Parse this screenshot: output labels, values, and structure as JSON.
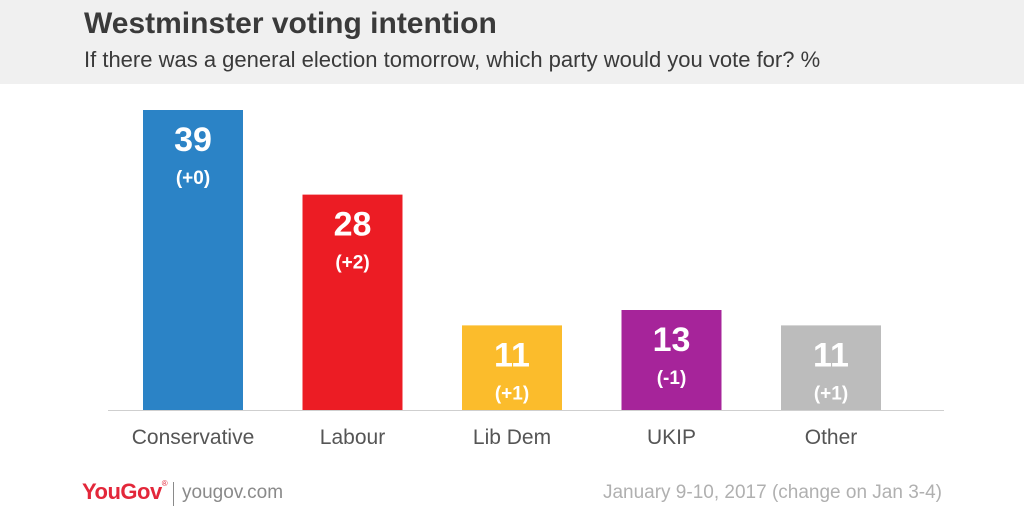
{
  "header": {
    "title": "Westminster voting intention",
    "subtitle": "If there was a general election tomorrow, which party would you vote for? %"
  },
  "chart_data": {
    "type": "bar",
    "categories": [
      "Conservative",
      "Labour",
      "Lib Dem",
      "UKIP",
      "Other"
    ],
    "values": [
      39,
      28,
      11,
      13,
      11
    ],
    "changes": [
      "(+0)",
      "(+2)",
      "(+1)",
      "(-1)",
      "(+1)"
    ],
    "colors": [
      "#2b83c6",
      "#ec1c24",
      "#fbbc2c",
      "#a6249a",
      "#bcbcbc"
    ],
    "title": "Westminster voting intention",
    "subtitle": "If there was a general election tomorrow, which party would you vote for? %",
    "xlabel": "",
    "ylabel": "",
    "ylim": [
      0,
      39
    ],
    "grid": false,
    "legend": "none"
  },
  "footer": {
    "logo": "YouGov",
    "logo_mark": "®",
    "site": "yougov.com",
    "date_note": "January 9-10, 2017 (change on Jan 3-4)"
  }
}
